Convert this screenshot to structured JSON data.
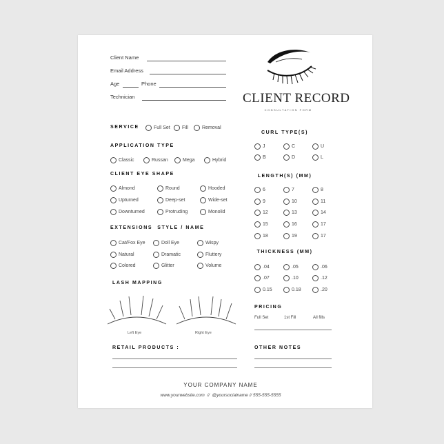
{
  "header": {
    "title": "CLIENT RECORD",
    "subtitle": "CONSULTATION FORM",
    "logo_icon": "closed-eye-lash-icon"
  },
  "client_fields": {
    "name": "Client Name",
    "email": "Email Address",
    "age": "Age",
    "phone": "Phone",
    "technician": "Technician"
  },
  "service": {
    "heading": "SERVICE",
    "options": [
      "Full Set",
      "Fill",
      "Removal"
    ]
  },
  "application_type": {
    "heading": "APPLICATION TYPE",
    "options": [
      "Classic",
      "Russan",
      "Mega",
      "Hybrid"
    ]
  },
  "eye_shape": {
    "heading": "CLIENT EYE SHAPE",
    "options": [
      "Almond",
      "Round",
      "Hooded",
      "Upturned",
      "Deep-set",
      "Wide-set",
      "Downturned",
      "Protruding",
      "Monolid"
    ]
  },
  "extension_style": {
    "heading": "EXTENSIONS  STYLE / NAME",
    "options": [
      "Cat/Fox Eye",
      "Doll Eye",
      "Wispy",
      "Natural",
      "Dramatic",
      "Fluttery",
      "Colored",
      "Glitter",
      "Volume"
    ]
  },
  "lash_mapping": {
    "heading": "LASH MAPPING",
    "left_label": "Left Eye",
    "right_label": "Right Eye"
  },
  "retail": {
    "heading": "RETAIL PRODUCTS :"
  },
  "curl_type": {
    "heading": "CURL TYPE(S)",
    "options": [
      "J",
      "C",
      "U",
      "B",
      "D",
      "L"
    ]
  },
  "lengths": {
    "heading": "LENGTH(S) (MM)",
    "options": [
      "6",
      "7",
      "8",
      "9",
      "10",
      "11",
      "12",
      "13",
      "14",
      "15",
      "16",
      "17",
      "18",
      "19",
      "17"
    ]
  },
  "thickness": {
    "heading": "THICKNESS (MM)",
    "options": [
      ".04",
      ".05",
      ".06",
      ".07",
      ".10",
      ".12",
      "0.15",
      "0.18",
      ".20"
    ]
  },
  "pricing": {
    "heading": "PRICING",
    "columns": [
      "Full Set",
      "1st Fill",
      "All fills"
    ]
  },
  "notes": {
    "heading": "OTHER NOTES"
  },
  "footer": {
    "company": "YOUR COMPANY NAME",
    "contact": "www.yourwebsite.com  //  @yoursocialname // 555-555-5555"
  }
}
